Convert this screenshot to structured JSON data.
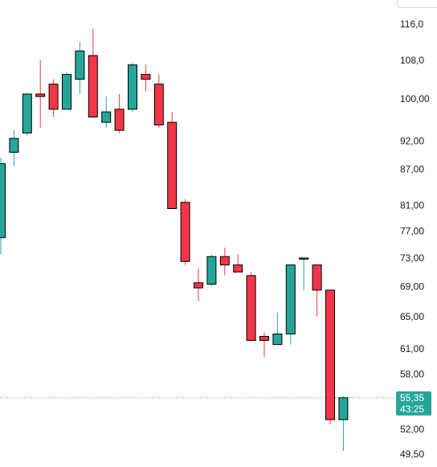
{
  "chart_data": {
    "type": "candlestick",
    "title": "",
    "xlabel": "",
    "ylabel": "",
    "y_scale": "log",
    "ylim": [
      48.5,
      122
    ],
    "grid": false,
    "colors": {
      "up": "#26a69a",
      "down": "#f23645",
      "wick": "#000000",
      "axis_text": "#131722",
      "price_line": "#26a69a"
    },
    "y_ticks": [
      {
        "value": 116.0,
        "label": "116,0"
      },
      {
        "value": 108.0,
        "label": "108,0"
      },
      {
        "value": 100.0,
        "label": "100,00"
      },
      {
        "value": 92.0,
        "label": "92,00"
      },
      {
        "value": 87.0,
        "label": "87,00"
      },
      {
        "value": 81.0,
        "label": "81,00"
      },
      {
        "value": 77.0,
        "label": "77,00"
      },
      {
        "value": 73.0,
        "label": "73,00"
      },
      {
        "value": 69.0,
        "label": "69,00"
      },
      {
        "value": 65.0,
        "label": "65,00"
      },
      {
        "value": 61.0,
        "label": "61,00"
      },
      {
        "value": 58.0,
        "label": "58,00"
      },
      {
        "value": 52.0,
        "label": "52,00"
      },
      {
        "value": 49.5,
        "label": "49,50"
      }
    ],
    "candles": [
      {
        "open": 76.0,
        "high": 89.0,
        "low": 73.5,
        "close": 88.0
      },
      {
        "open": 90.0,
        "high": 94.0,
        "low": 87.5,
        "close": 92.5
      },
      {
        "open": 93.5,
        "high": 101.0,
        "low": 93.0,
        "close": 101.0
      },
      {
        "open": 101.0,
        "high": 108.0,
        "low": 94.5,
        "close": 100.5
      },
      {
        "open": 103.0,
        "high": 104.0,
        "low": 96.5,
        "close": 98.0
      },
      {
        "open": 98.0,
        "high": 105.5,
        "low": 98.0,
        "close": 105.0
      },
      {
        "open": 104.0,
        "high": 112.0,
        "low": 101.0,
        "close": 110.0
      },
      {
        "open": 109.0,
        "high": 115.0,
        "low": 96.5,
        "close": 96.5
      },
      {
        "open": 95.5,
        "high": 100.5,
        "low": 94.5,
        "close": 97.5
      },
      {
        "open": 98.0,
        "high": 101.0,
        "low": 93.5,
        "close": 94.0
      },
      {
        "open": 98.0,
        "high": 107.5,
        "low": 97.5,
        "close": 107.0
      },
      {
        "open": 105.0,
        "high": 107.0,
        "low": 101.5,
        "close": 104.0
      },
      {
        "open": 103.0,
        "high": 105.0,
        "low": 94.5,
        "close": 95.0
      },
      {
        "open": 95.5,
        "high": 97.5,
        "low": 80.5,
        "close": 80.5
      },
      {
        "open": 81.5,
        "high": 82.0,
        "low": 72.0,
        "close": 72.5
      },
      {
        "open": 69.5,
        "high": 71.5,
        "low": 67.0,
        "close": 68.8
      },
      {
        "open": 69.3,
        "high": 73.5,
        "low": 69.0,
        "close": 73.2
      },
      {
        "open": 73.2,
        "high": 74.5,
        "low": 70.5,
        "close": 72.0
      },
      {
        "open": 72.0,
        "high": 73.5,
        "low": 71.0,
        "close": 71.0
      },
      {
        "open": 70.5,
        "high": 71.0,
        "low": 62.0,
        "close": 62.0
      },
      {
        "open": 62.5,
        "high": 63.0,
        "low": 60.0,
        "close": 62.0
      },
      {
        "open": 61.5,
        "high": 65.5,
        "low": 61.5,
        "close": 62.8
      },
      {
        "open": 62.8,
        "high": 72.0,
        "low": 61.5,
        "close": 72.0
      },
      {
        "open": 73.0,
        "high": 73.1,
        "low": 68.5,
        "close": 73.0
      },
      {
        "open": 72.0,
        "high": 72.0,
        "low": 65.0,
        "close": 68.5
      },
      {
        "open": 68.5,
        "high": 68.5,
        "low": 52.5,
        "close": 53.0
      },
      {
        "open": 53.0,
        "high": 55.5,
        "low": 49.8,
        "close": 55.35
      }
    ],
    "last_price": {
      "value": 55.35,
      "label": "55,35",
      "countdown": "43:25"
    }
  }
}
